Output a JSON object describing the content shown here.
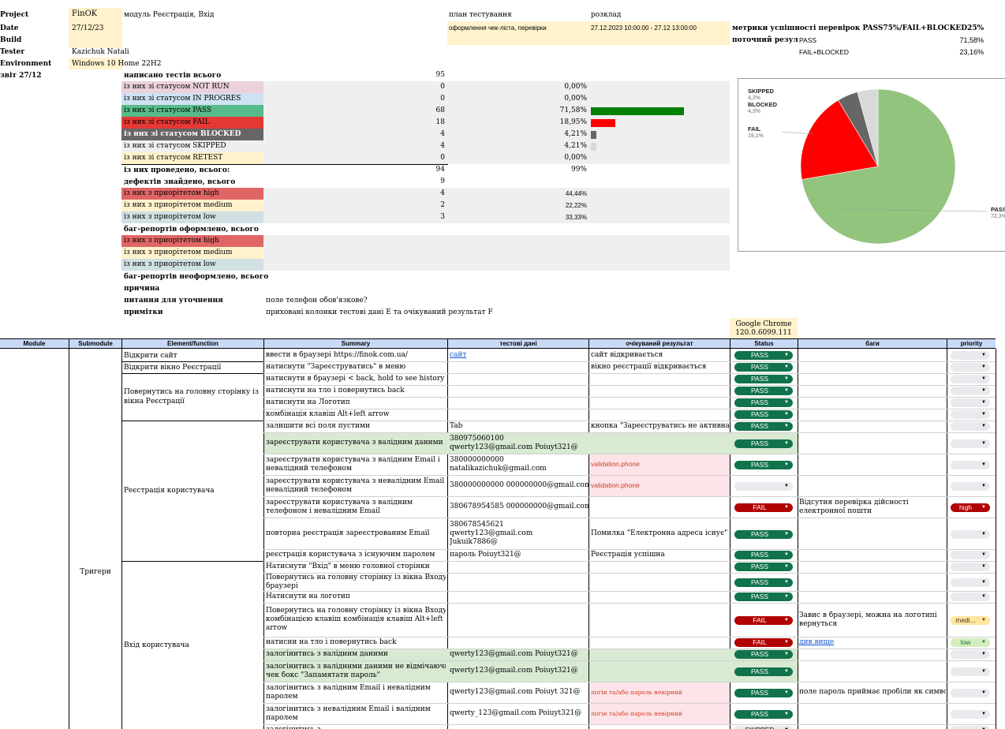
{
  "top": {
    "project_label": "Project",
    "project_value": "FinOK",
    "module_text": "модуль Реєстрація, Вхід",
    "date_label": "Date",
    "date_value": "27/12/23",
    "build_label": "Build",
    "tester_label": "Tester",
    "tester_value": "Kazichuk Natali",
    "env_label": "Environment",
    "env_value": "Windows 10 Home 22H2",
    "report_label": "звіт 27/12",
    "plan_label": "план тестування",
    "plan_value": "оформлення чек-ліста, перевірки",
    "schedule_label": "розклад",
    "schedule_value": "27.12.2023 10:00:00 - 27.12 13:00:00",
    "metrics_label": "метрики успішності перевірок PASS75%/FAIL+BLOCKED25%",
    "current_label": "поточний результ",
    "cur_pass_label": "PASS",
    "cur_pass_value": "71,58%",
    "cur_fb_label": "FAIL+BLOCKED",
    "cur_fb_value": "23,16%"
  },
  "stats": {
    "written_label": "написано тестів всього",
    "written_value": "95",
    "rows": [
      {
        "label": "із них зі статусом NOT RUN",
        "value": "0",
        "pct": "0,00%",
        "bg": "#ead1dc"
      },
      {
        "label": "із них зі статусом IN PROGRES",
        "value": "0",
        "pct": "0,00%",
        "bg": "#cfe2f3"
      },
      {
        "label": "із них зі статусом PASS",
        "value": "68",
        "pct": "71,58%",
        "bg": "#57bb8a"
      },
      {
        "label": "із них зі статусом FAIL",
        "value": "18",
        "pct": "18,95%",
        "bg": "#e53935"
      },
      {
        "label": "із них зі статусом BLOCKED",
        "value": "4",
        "pct": "4,21%",
        "bg": "#666666"
      },
      {
        "label": "із них зі статусом SKIPPED",
        "value": "4",
        "pct": "4,21%",
        "bg": "#efefef"
      },
      {
        "label": "із них зі статусом RETEST",
        "value": "0",
        "pct": "0,00%",
        "bg": "#fff2cc"
      }
    ],
    "executed_label": "із них проведено, всього:",
    "executed_value": "94",
    "executed_pct": "99%",
    "defects_label": "дефектів знайдено, всього",
    "defects_value": "9",
    "priority_rows": [
      {
        "label": "із них з приорітетом high",
        "value": "4",
        "pct": "44,44%",
        "bg": "#e06666"
      },
      {
        "label": "із них з приорітетом medium",
        "value": "2",
        "pct": "22,22%",
        "bg": "#fff2cc"
      },
      {
        "label": "із них з приорітетом low",
        "value": "3",
        "pct": "33,33%",
        "bg": "#d0e0e3"
      }
    ],
    "bugs_done_label": "баг-репортів оформлено, всього",
    "bugs_rows": [
      {
        "label": "із них з приорітетом high",
        "bg": "#e06666"
      },
      {
        "label": "із них з приорітетом medium",
        "bg": "#fff2cc"
      },
      {
        "label": "із них з приорітетом low",
        "bg": "#d0e0e3"
      }
    ],
    "bugs_undone_label": "баг-репортів неоформлено, всього",
    "reason_label": "причина",
    "questions_label": "питання для уточнення",
    "questions_value": "поле телефон обов'язкове?",
    "notes_label": "примітки",
    "notes_value": "приховані колонки тестові дані Е та очікуваний результат F"
  },
  "chart_data": {
    "type": "pie",
    "slices": [
      {
        "label": "PASS",
        "pct_label": "72,3%",
        "value": 72.3,
        "color": "#93c47d"
      },
      {
        "label": "FAIL",
        "pct_label": "19,1%",
        "value": 19.1,
        "color": "#ff0000"
      },
      {
        "label": "BLOCKED",
        "pct_label": "4,3%",
        "value": 4.3,
        "color": "#666666"
      },
      {
        "label": "SKIPPED",
        "pct_label": "4,3%",
        "value": 4.3,
        "color": "#d9d9d9"
      }
    ]
  },
  "browser": {
    "name": "Google Chrome",
    "version": "120.0.6099.111"
  },
  "table": {
    "headers": [
      "Module",
      "Submodule",
      "Element/function",
      "Summary",
      "тестові дані",
      "очікуваний результат",
      "Status",
      "баги",
      "priority"
    ],
    "submodule": "Тригери",
    "groups": [
      {
        "element": "Відкрити сайт"
      },
      {
        "element": "Відкрити вікно Реєстрації"
      },
      {
        "element": "Повернутись на головну сторінку із вікна Реєстрації"
      },
      {
        "element": "Реєстрація користувача"
      },
      {
        "element": "Вхід користувача"
      }
    ],
    "rows": [
      {
        "summary": "ввести в браузері https://finok.com.ua/",
        "data": "сайт",
        "expected": "сайт відкривається",
        "status": "PASS",
        "bug": "",
        "priority": ""
      },
      {
        "summary": "натиснути \"Зареєструватись\" в меню",
        "data": "",
        "expected": "вікно реєстрації відкривається",
        "status": "PASS",
        "bug": "",
        "priority": ""
      },
      {
        "summary": "натиснути в браузері < back, hold to see history",
        "data": "",
        "expected": "",
        "status": "PASS",
        "bug": "",
        "priority": ""
      },
      {
        "summary": "натиснути на тло і повернутись back",
        "data": "",
        "expected": "",
        "status": "PASS",
        "bug": "",
        "priority": ""
      },
      {
        "summary": "натиснути на Логотип",
        "data": "",
        "expected": "",
        "status": "PASS",
        "bug": "",
        "priority": ""
      },
      {
        "summary": "комбінація клавіш Alt+left arrow",
        "data": "",
        "expected": "",
        "status": "PASS",
        "bug": "",
        "priority": ""
      },
      {
        "summary": "залишити всі поля пустими",
        "data": "Tab",
        "expected": "кнопка \"Зареєструватись не активна\"",
        "status": "PASS",
        "bug": "",
        "priority": ""
      },
      {
        "summary": "зареєструвати користувача з валідним даними",
        "data": "380975060100",
        "data2": "qwerty123@gmail.com      Poiuyt321@",
        "expected": "",
        "status": "PASS",
        "bug": "",
        "priority": ""
      },
      {
        "summary": "зареєструвати користувача з валідним Email і",
        "summary2": "невалідний телефоном",
        "data": "380000000000",
        "data2": "natalikazichuk@gmail.com",
        "expected": "validation.phone",
        "status": "PASS",
        "bug": "",
        "priority": ""
      },
      {
        "summary": "зареєструвати користувача з невалідним Email і",
        "summary2": "невалідний телефоном",
        "data": "380000000000 000000000@gmail.com",
        "expected": "validation.phone",
        "status": "",
        "bug": "",
        "priority": ""
      },
      {
        "summary": "зареєструвати користувача з валідним",
        "summary2": "телефоном і невалідним Email",
        "data": "380678954585 000000000@gmail.com",
        "expected": "",
        "status": "FAIL",
        "bug": "Відсутня перевірка дійсності",
        "bug2": "електронної пошти",
        "priority": "high"
      },
      {
        "summary": "повторна реєстрація зареєстрованим Email",
        "data": "380678545621",
        "data2": "qwerty123@gmail.com",
        "data3": "Jukuik7886@",
        "expected": "Помилка \"Електронна адреса існує\"",
        "status": "PASS",
        "bug": "",
        "priority": ""
      },
      {
        "summary": "реєстрація користувача з існуючим паролем",
        "data": "пароль  Poiuyt321@",
        "expected": "Реєстрація успішна",
        "status": "PASS",
        "bug": "",
        "priority": ""
      },
      {
        "summary": "Натиснути \"Вхід\" в меню головної сторінки",
        "data": "",
        "expected": "",
        "status": "PASS",
        "bug": "",
        "priority": ""
      },
      {
        "summary": "Повернутись на головну сторінку із вікна Входу в",
        "summary2": "браузері",
        "data": "",
        "expected": "",
        "status": "PASS",
        "bug": "",
        "priority": ""
      },
      {
        "summary": "Натиснути на логотип",
        "data": "",
        "expected": "",
        "status": "PASS",
        "bug": "",
        "priority": ""
      },
      {
        "summary": "Повернутись на головну сторінку із вікна Входу",
        "summary2": "комбінацією клавіш комбінація клавіш Alt+left",
        "summary3": "arrow",
        "data": "",
        "expected": "",
        "status": "FAIL",
        "bug": "Завис в браузері, можна на логотипі",
        "bug2": "вернуться",
        "priority": "medi..."
      },
      {
        "summary": "натисни на тло і повернутись back",
        "data": "",
        "expected": "",
        "status": "FAIL",
        "bug": "див.вище",
        "priority": "low"
      },
      {
        "summary": "залогінитись з валідним даними",
        "data": "qwerty123@gmail.com   Poiuyt321@",
        "expected": "",
        "status": "PASS",
        "bug": "",
        "priority": ""
      },
      {
        "summary": "залогінитись з валідними даними не відмічаючи",
        "summary2": "чек бокс \"Запамятати пароль\"",
        "data": "qwerty123@gmail.com   Poiuyt321@",
        "expected": "",
        "status": "PASS",
        "bug": "",
        "priority": ""
      },
      {
        "summary": "залогінитись з валідним Email і невалідним",
        "summary2": "паролем",
        "data": "qwerty123@gmail.com   Poiuyt 321@",
        "expected": "логін та/або пароль невірний",
        "status": "PASS",
        "bug": "поле пароль приймає пробіли як символ",
        "priority": ""
      },
      {
        "summary": "залогінитись з невалідним Email і валідним",
        "summary2": "паролем",
        "data": "qwerty_123@gmail.com   Poiuyt321@",
        "expected": "логін та/або пароль невірний",
        "status": "PASS",
        "bug": "",
        "priority": ""
      },
      {
        "summary": "залогінитись з...",
        "data": "",
        "expected": "",
        "status": "SKIPPED",
        "bug": "",
        "priority": ""
      }
    ]
  }
}
